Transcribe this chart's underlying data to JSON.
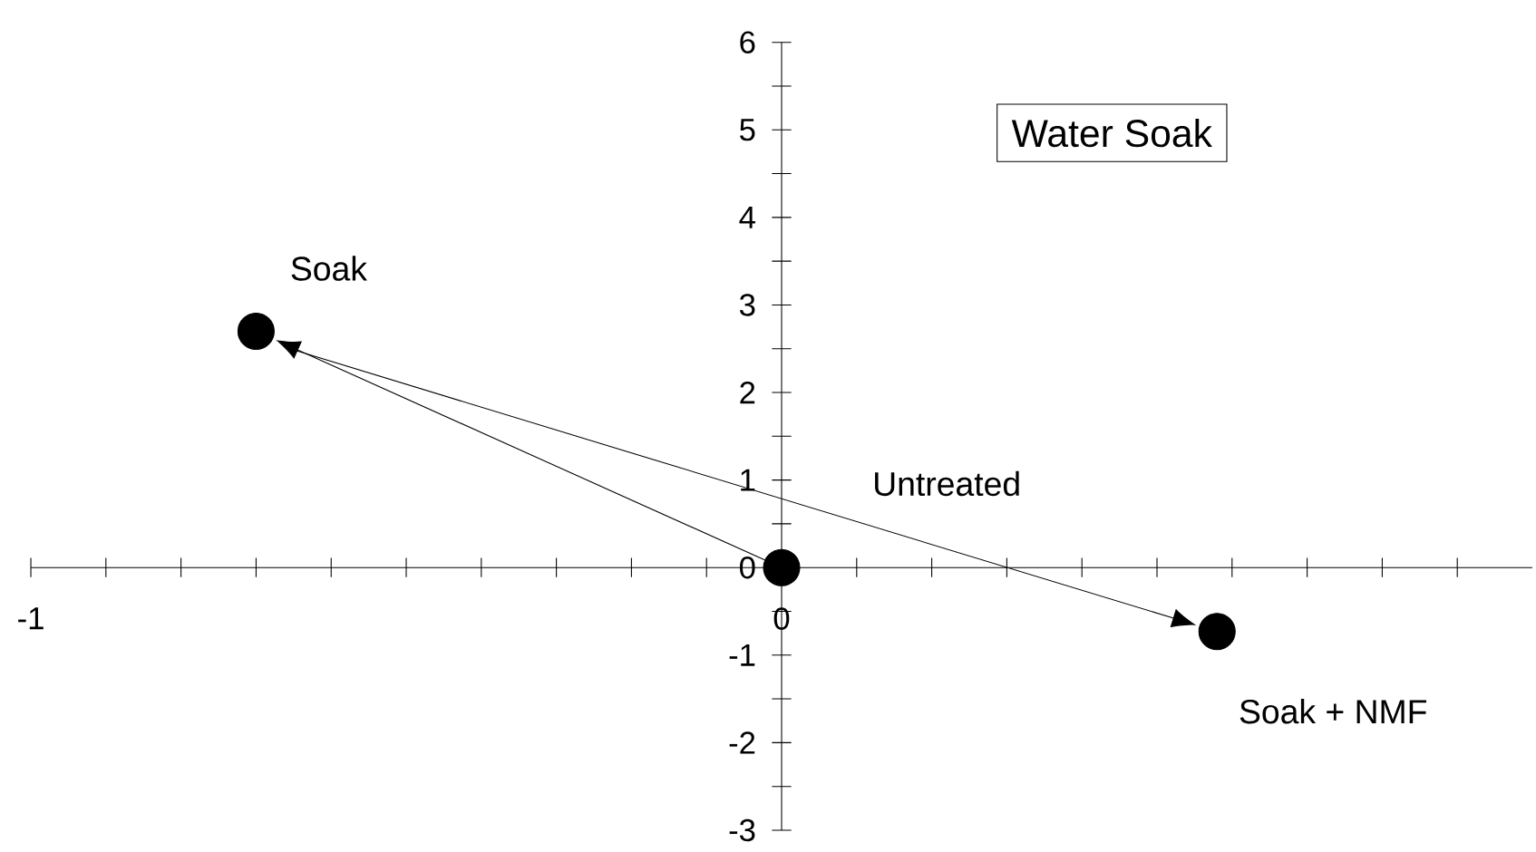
{
  "chart_data": {
    "type": "scatter",
    "title": "Water Soak",
    "x": [
      -0.7,
      0,
      0.58
    ],
    "values": [
      2.7,
      0,
      -0.73
    ],
    "color": "#000000",
    "marker": "circle",
    "xlim": [
      -1,
      1
    ],
    "xticks": [
      {
        "value": -1,
        "label": "-1"
      },
      {
        "value": -0.9,
        "label": null
      },
      {
        "value": -0.8,
        "label": null
      },
      {
        "value": -0.7,
        "label": null
      },
      {
        "value": -0.6,
        "label": null
      },
      {
        "value": -0.5,
        "label": null
      },
      {
        "value": -0.4,
        "label": null
      },
      {
        "value": -0.3,
        "label": null
      },
      {
        "value": -0.2,
        "label": null
      },
      {
        "value": -0.1,
        "label": null
      },
      {
        "value": 0,
        "label": "0"
      },
      {
        "value": 0.1,
        "label": null
      },
      {
        "value": 0.2,
        "label": null
      },
      {
        "value": 0.3,
        "label": null
      },
      {
        "value": 0.4,
        "label": null
      },
      {
        "value": 0.5,
        "label": null
      },
      {
        "value": 0.6,
        "label": null
      },
      {
        "value": 0.7,
        "label": null
      },
      {
        "value": 0.8,
        "label": null
      },
      {
        "value": 0.9,
        "label": null
      }
    ],
    "ylim": [
      -3,
      6
    ],
    "yticks": [
      {
        "value": -3,
        "label": "-3"
      },
      {
        "value": -2.5,
        "label": null
      },
      {
        "value": -2,
        "label": "-2"
      },
      {
        "value": -1.5,
        "label": null
      },
      {
        "value": -1,
        "label": "-1"
      },
      {
        "value": -0.5,
        "label": null
      },
      {
        "value": 0,
        "label": "0"
      },
      {
        "value": 0.5,
        "label": null
      },
      {
        "value": 1,
        "label": "1"
      },
      {
        "value": 1.5,
        "label": null
      },
      {
        "value": 2,
        "label": "2"
      },
      {
        "value": 2.5,
        "label": null
      },
      {
        "value": 3,
        "label": "3"
      },
      {
        "value": 3.5,
        "label": null
      },
      {
        "value": 4,
        "label": "4"
      },
      {
        "value": 4.5,
        "label": null
      },
      {
        "value": 5,
        "label": "5"
      },
      {
        "value": 5.5,
        "label": null
      },
      {
        "value": 6,
        "label": "6"
      }
    ],
    "grid": false,
    "annotations": [
      {
        "text": "Soak",
        "x": -0.7,
        "y": 2.7
      },
      "Untreated",
      {
        "text": "Soak + NMF",
        "x": 0.58,
        "y": -0.73
      }
    ]
  }
}
